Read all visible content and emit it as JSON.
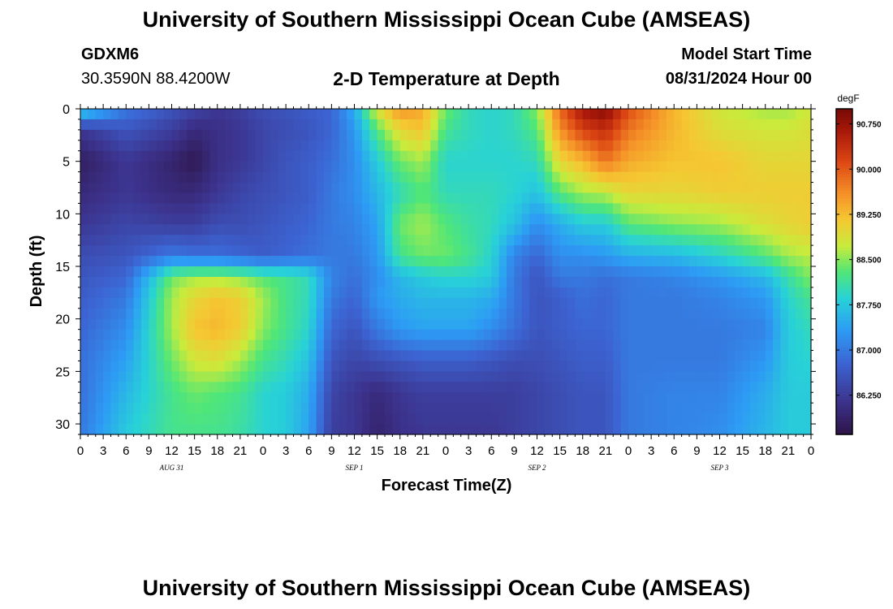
{
  "header": {
    "title": "University of Southern Mississippi Ocean Cube (AMSEAS)",
    "station": "GDXM6",
    "coords": "30.3590N  88.4200W",
    "subtitle": "2-D Temperature at Depth",
    "model_start_label": "Model Start Time",
    "model_start_value": "08/31/2024 Hour 00"
  },
  "footer": {
    "title": "University of Southern Mississippi Ocean Cube (AMSEAS)"
  },
  "chart_data": {
    "type": "heatmap",
    "xlabel": "Forecast Time(Z)",
    "ylabel": "Depth (ft)",
    "x_unit": "hours from 08/31/2024 00Z",
    "xlim": [
      0,
      96
    ],
    "ylim": [
      0,
      31
    ],
    "x_tick_labels": [
      "0",
      "3",
      "6",
      "9",
      "12",
      "15",
      "18",
      "21",
      "0",
      "3",
      "6",
      "9",
      "12",
      "15",
      "18",
      "21",
      "0",
      "3",
      "6",
      "9",
      "12",
      "15",
      "18",
      "21",
      "0",
      "3",
      "6",
      "9",
      "12",
      "15",
      "18",
      "21",
      "0"
    ],
    "y_ticks": [
      0,
      5,
      10,
      15,
      20,
      25,
      30
    ],
    "date_labels": [
      "AUG 31",
      "SEP 1",
      "SEP 2",
      "SEP 3"
    ],
    "colorbar": {
      "unit": "degF",
      "ticks": [
        "90.750",
        "90.000",
        "89.250",
        "88.500",
        "87.750",
        "87.000",
        "86.250"
      ],
      "vmin": 85.6,
      "vmax": 91.0
    },
    "grid": false,
    "temperature_degF": {
      "times": [
        0,
        6,
        12,
        15,
        18,
        21,
        24,
        27,
        30,
        33,
        36,
        39,
        42,
        45,
        48,
        51,
        54,
        57,
        60,
        63,
        66,
        69,
        72,
        78,
        84,
        90,
        93,
        96
      ],
      "depths": [
        0,
        2,
        5,
        8,
        11,
        14,
        16,
        18,
        21,
        24,
        27,
        31
      ],
      "values": [
        [
          88.0,
          86.2,
          85.8,
          86.0,
          86.2,
          86.5,
          86.6,
          86.7,
          86.8,
          86.9,
          86.9,
          87.0
        ],
        [
          87.0,
          86.6,
          86.2,
          86.2,
          86.4,
          86.6,
          86.8,
          87.0,
          87.2,
          87.4,
          87.6,
          87.8
        ],
        [
          86.6,
          86.3,
          85.9,
          86.0,
          86.3,
          87.0,
          88.4,
          88.6,
          88.6,
          88.4,
          88.2,
          88.2
        ],
        [
          86.4,
          86.0,
          85.7,
          86.0,
          86.3,
          86.9,
          88.6,
          89.0,
          89.2,
          88.8,
          88.4,
          88.2
        ],
        [
          86.2,
          86.1,
          86.1,
          86.2,
          86.5,
          86.9,
          88.6,
          89.2,
          89.3,
          88.9,
          88.3,
          88.2
        ],
        [
          86.3,
          86.2,
          86.2,
          86.4,
          86.5,
          86.8,
          88.5,
          89.1,
          89.1,
          88.6,
          88.2,
          88.1
        ],
        [
          86.5,
          86.4,
          86.4,
          86.5,
          86.6,
          86.7,
          88.3,
          88.6,
          88.5,
          88.2,
          87.9,
          87.9
        ],
        [
          86.6,
          86.5,
          86.6,
          86.6,
          86.7,
          86.8,
          88.2,
          88.2,
          88.2,
          88.0,
          87.8,
          87.8
        ],
        [
          86.7,
          86.6,
          86.7,
          86.7,
          86.8,
          86.9,
          88.0,
          88.0,
          87.9,
          87.7,
          87.5,
          87.4
        ],
        [
          86.8,
          86.8,
          86.9,
          87.0,
          87.0,
          87.0,
          87.1,
          87.0,
          86.8,
          86.6,
          86.4,
          86.3
        ],
        [
          87.5,
          87.3,
          87.2,
          87.2,
          87.1,
          87.0,
          86.9,
          86.8,
          86.6,
          86.4,
          86.2,
          86.2
        ],
        [
          88.9,
          88.3,
          87.8,
          87.6,
          87.4,
          87.3,
          87.2,
          87.3,
          87.0,
          86.5,
          86.0,
          85.9
        ],
        [
          89.6,
          89.0,
          88.4,
          88.0,
          88.4,
          88.2,
          87.6,
          87.5,
          87.3,
          86.6,
          86.2,
          86.1
        ],
        [
          89.4,
          89.2,
          88.6,
          88.3,
          88.6,
          88.4,
          87.8,
          87.6,
          87.4,
          86.7,
          86.3,
          86.2
        ],
        [
          88.4,
          88.2,
          87.9,
          88.0,
          88.3,
          88.4,
          87.9,
          87.6,
          87.4,
          86.7,
          86.3,
          86.2
        ],
        [
          88.0,
          88.0,
          87.9,
          88.0,
          88.1,
          88.2,
          87.9,
          87.6,
          87.4,
          86.7,
          86.3,
          86.2
        ],
        [
          87.9,
          87.9,
          87.9,
          88.0,
          88.0,
          87.9,
          87.8,
          87.5,
          87.2,
          86.6,
          86.3,
          86.2
        ],
        [
          88.0,
          88.0,
          87.9,
          87.9,
          87.7,
          87.1,
          87.0,
          87.0,
          86.9,
          86.5,
          86.3,
          86.3
        ],
        [
          88.5,
          88.3,
          88.0,
          87.7,
          87.2,
          86.8,
          86.6,
          86.6,
          86.6,
          86.5,
          86.4,
          86.4
        ],
        [
          89.9,
          89.6,
          89.0,
          88.3,
          87.5,
          87.2,
          87.0,
          86.7,
          86.7,
          86.6,
          86.5,
          86.5
        ],
        [
          90.7,
          90.2,
          89.3,
          88.6,
          87.8,
          87.2,
          87.0,
          86.9,
          86.8,
          86.7,
          86.6,
          86.6
        ],
        [
          90.9,
          90.4,
          89.8,
          88.7,
          87.8,
          87.3,
          86.9,
          86.8,
          86.8,
          86.7,
          86.6,
          86.6
        ],
        [
          90.1,
          89.8,
          89.4,
          89.0,
          88.3,
          87.5,
          87.0,
          87.0,
          87.0,
          87.0,
          87.0,
          87.0
        ],
        [
          89.3,
          89.3,
          89.2,
          89.0,
          88.5,
          87.6,
          87.1,
          87.0,
          87.0,
          87.0,
          87.1,
          87.1
        ],
        [
          88.8,
          88.9,
          89.2,
          89.1,
          88.6,
          87.9,
          87.3,
          87.1,
          87.0,
          87.0,
          87.1,
          87.2
        ],
        [
          88.6,
          88.8,
          89.0,
          89.1,
          88.9,
          88.3,
          87.6,
          87.3,
          87.1,
          87.3,
          87.5,
          87.6
        ],
        [
          88.6,
          88.8,
          89.0,
          89.1,
          89.0,
          88.6,
          88.1,
          87.9,
          87.8,
          87.8,
          87.8,
          87.8
        ],
        [
          88.8,
          88.9,
          89.0,
          89.1,
          89.1,
          88.7,
          88.5,
          88.2,
          88.0,
          87.9,
          87.8,
          87.8
        ]
      ]
    }
  }
}
